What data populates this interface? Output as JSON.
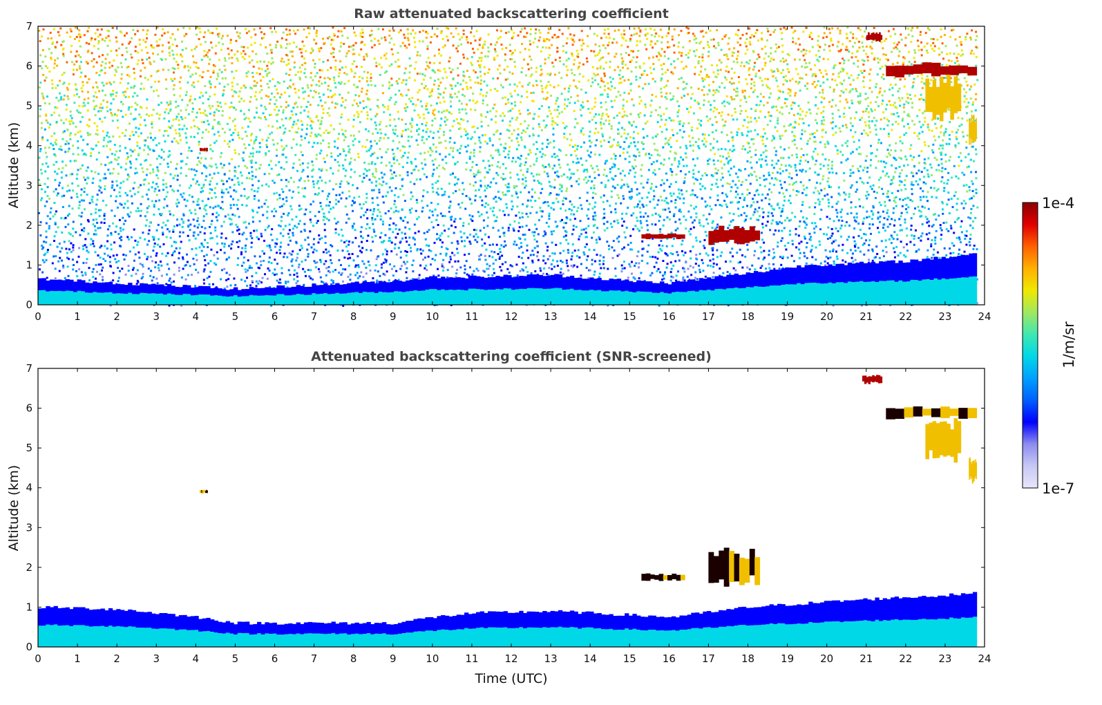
{
  "chart_data": [
    {
      "type": "heatmap",
      "title": "Raw attenuated backscattering coefficient",
      "xlabel": "",
      "ylabel": "Altitude (km)",
      "xlim": [
        0,
        24
      ],
      "ylim": [
        0,
        7
      ],
      "xticks": [
        "0",
        "1",
        "2",
        "3",
        "4",
        "5",
        "6",
        "7",
        "8",
        "9",
        "10",
        "11",
        "12",
        "13",
        "14",
        "15",
        "16",
        "17",
        "18",
        "19",
        "20",
        "21",
        "22",
        "23",
        "24"
      ],
      "yticks": [
        "0",
        "1",
        "2",
        "3",
        "4",
        "5",
        "6",
        "7"
      ],
      "data_extent_hours": [
        0,
        23.8
      ],
      "background_noise": "scattered speckle, blue near boundary layer increasing to yellow/orange aloft",
      "boundary_layer_top_km": [
        [
          0,
          0.65
        ],
        [
          2,
          0.55
        ],
        [
          4,
          0.45
        ],
        [
          5,
          0.4
        ],
        [
          7,
          0.5
        ],
        [
          9,
          0.6
        ],
        [
          10,
          0.7
        ],
        [
          11,
          0.7
        ],
        [
          13,
          0.75
        ],
        [
          15,
          0.6
        ],
        [
          16,
          0.55
        ],
        [
          18,
          0.8
        ],
        [
          19.5,
          1.0
        ],
        [
          21,
          1.05
        ],
        [
          22,
          1.1
        ],
        [
          23,
          1.2
        ],
        [
          23.8,
          1.3
        ]
      ],
      "features": [
        {
          "label": "cloud",
          "t": [
            4.1,
            4.3
          ],
          "alt_km": [
            3.85,
            3.95
          ],
          "intensity": "high"
        },
        {
          "label": "cloud",
          "t": [
            15.3,
            16.4
          ],
          "alt_km": [
            1.65,
            1.8
          ],
          "intensity": "high"
        },
        {
          "label": "cloud",
          "t": [
            17.0,
            18.3
          ],
          "alt_km": [
            1.5,
            2.0
          ],
          "intensity": "high"
        },
        {
          "label": "cloud",
          "t": [
            21.0,
            21.4
          ],
          "alt_km": [
            6.6,
            6.85
          ],
          "intensity": "high"
        },
        {
          "label": "cloud",
          "t": [
            21.5,
            23.8
          ],
          "alt_km": [
            5.7,
            6.1
          ],
          "intensity": "high"
        },
        {
          "label": "virga",
          "t": [
            22.5,
            23.4
          ],
          "alt_km": [
            4.6,
            5.8
          ],
          "intensity": "medium"
        },
        {
          "label": "cloud",
          "t": [
            23.6,
            23.8
          ],
          "alt_km": [
            4.0,
            4.8
          ],
          "intensity": "medium"
        }
      ]
    },
    {
      "type": "heatmap",
      "title": "Attenuated backscattering coefficient (SNR-screened)",
      "xlabel": "Time (UTC)",
      "ylabel": "Altitude (km)",
      "xlim": [
        0,
        24
      ],
      "ylim": [
        0,
        7
      ],
      "xticks": [
        "0",
        "1",
        "2",
        "3",
        "4",
        "5",
        "6",
        "7",
        "8",
        "9",
        "10",
        "11",
        "12",
        "13",
        "14",
        "15",
        "16",
        "17",
        "18",
        "19",
        "20",
        "21",
        "22",
        "23",
        "24"
      ],
      "yticks": [
        "0",
        "1",
        "2",
        "3",
        "4",
        "5",
        "6",
        "7"
      ],
      "data_extent_hours": [
        0,
        23.8
      ],
      "boundary_layer_top_km": [
        [
          0,
          1.0
        ],
        [
          2,
          0.95
        ],
        [
          4,
          0.75
        ],
        [
          5,
          0.6
        ],
        [
          7,
          0.6
        ],
        [
          9,
          0.6
        ],
        [
          10,
          0.75
        ],
        [
          11,
          0.85
        ],
        [
          13,
          0.9
        ],
        [
          15,
          0.8
        ],
        [
          16,
          0.75
        ],
        [
          18,
          1.0
        ],
        [
          19.5,
          1.1
        ],
        [
          21,
          1.2
        ],
        [
          22,
          1.25
        ],
        [
          23,
          1.3
        ],
        [
          23.8,
          1.35
        ]
      ],
      "features": [
        {
          "label": "cloud",
          "t": [
            4.1,
            4.3
          ],
          "alt_km": [
            3.85,
            3.95
          ],
          "intensity": "saturated"
        },
        {
          "label": "cloud",
          "t": [
            15.3,
            16.4
          ],
          "alt_km": [
            1.65,
            1.85
          ],
          "intensity": "saturated"
        },
        {
          "label": "cloud",
          "t": [
            17.0,
            18.3
          ],
          "alt_km": [
            1.5,
            2.5
          ],
          "intensity": "saturated"
        },
        {
          "label": "cloud",
          "t": [
            20.9,
            21.4
          ],
          "alt_km": [
            6.6,
            6.85
          ],
          "intensity": "high"
        },
        {
          "label": "cloud",
          "t": [
            21.5,
            23.8
          ],
          "alt_km": [
            5.7,
            6.1
          ],
          "intensity": "saturated"
        },
        {
          "label": "virga",
          "t": [
            22.5,
            23.4
          ],
          "alt_km": [
            4.6,
            5.8
          ],
          "intensity": "medium"
        },
        {
          "label": "cloud",
          "t": [
            23.6,
            23.8
          ],
          "alt_km": [
            4.1,
            4.8
          ],
          "intensity": "medium"
        }
      ]
    }
  ],
  "colorbar": {
    "min_label": "1e-7",
    "max_label": "1e-4",
    "unit_label": "1/m/sr",
    "scale": "log",
    "colormap": [
      "#e6e6fa",
      "#c8c8f5",
      "#8c8cf0",
      "#0000ff",
      "#0060ff",
      "#00a0ff",
      "#00d8e8",
      "#40e8b0",
      "#a0e860",
      "#f0e800",
      "#ffb000",
      "#ff6000",
      "#e00000",
      "#8b0000"
    ]
  }
}
